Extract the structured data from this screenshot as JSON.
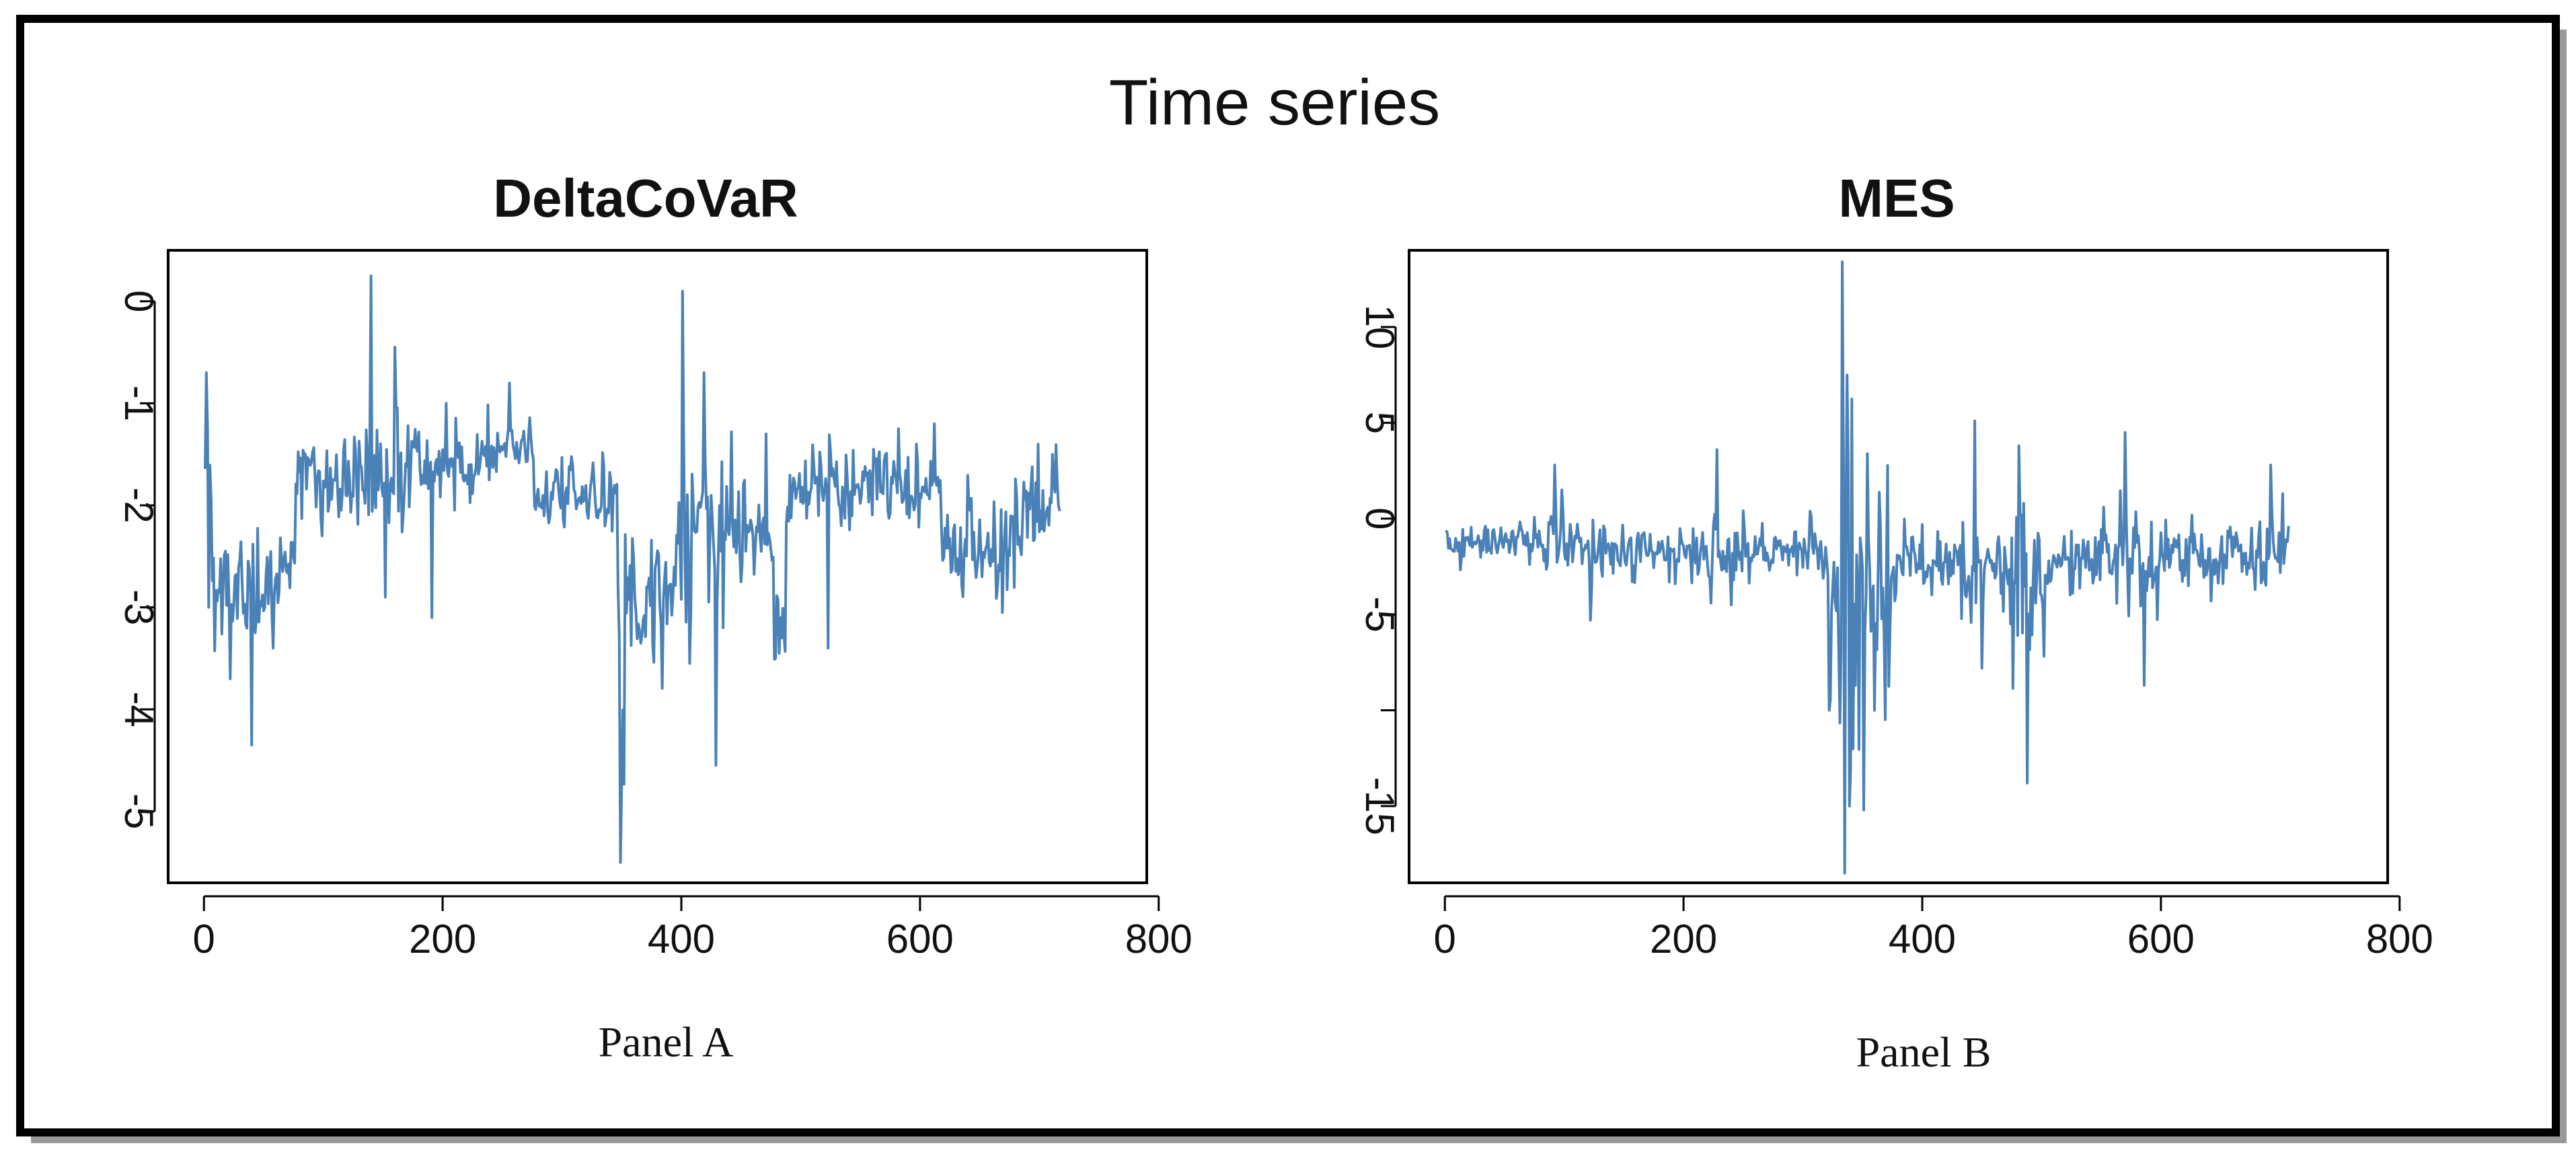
{
  "figure": {
    "title": "Time series"
  },
  "chart_data": [
    {
      "type": "line",
      "title": "DeltaCoVaR",
      "caption": "Panel A",
      "xlabel": "",
      "ylabel": "",
      "xlim": [
        -30,
        790
      ],
      "ylim": [
        -5.7,
        0.5
      ],
      "x_ticks": [
        0,
        200,
        400,
        600,
        800
      ],
      "y_ticks": [
        0,
        -1,
        -2,
        -3,
        -4,
        -5
      ],
      "x_tick_labels": [
        "0",
        "200",
        "400",
        "600",
        "800"
      ],
      "y_tick_labels": [
        "0",
        "-1",
        "-2",
        "-3",
        "-4",
        "-5"
      ],
      "series_color": "#4a82b8",
      "series": [
        {
          "name": "DeltaCoVaR",
          "x_start": 1,
          "x_step": 1,
          "segments": [
            {
              "n": 6,
              "mean": -1.6,
              "noise": 0.22,
              "spikes": [
                [
                  0.2,
                  -0.7
                ],
                [
                  0.6,
                  -3.0
                ]
              ]
            },
            {
              "n": 40,
              "mean": -2.75,
              "noise": 0.35,
              "spikes": [
                [
                  0.4,
                  -3.7
                ],
                [
                  0.85,
                  -4.35
                ]
              ]
            },
            {
              "n": 30,
              "mean": -2.6,
              "noise": 0.3,
              "spikes": [
                [
                  0.4,
                  -3.4
                ]
              ]
            },
            {
              "n": 60,
              "mean": -1.8,
              "noise": 0.25,
              "spikes": []
            },
            {
              "n": 40,
              "mean": -1.7,
              "noise": 0.28,
              "spikes": [
                [
                  0.1,
                  0.25
                ],
                [
                  0.4,
                  -2.9
                ],
                [
                  0.6,
                  -0.45
                ]
              ]
            },
            {
              "n": 60,
              "mean": -1.55,
              "noise": 0.22,
              "spikes": [
                [
                  0.25,
                  -3.1
                ],
                [
                  0.45,
                  -1.0
                ]
              ]
            },
            {
              "n": 40,
              "mean": -1.45,
              "noise": 0.2,
              "spikes": [
                [
                  0.5,
                  -0.8
                ]
              ]
            },
            {
              "n": 70,
              "mean": -1.95,
              "noise": 0.2,
              "spikes": []
            },
            {
              "n": 6,
              "mean": -4.0,
              "noise": 0.4,
              "spikes": [
                [
                  0.5,
                  -5.5
                ]
              ]
            },
            {
              "n": 55,
              "mean": -2.9,
              "noise": 0.45,
              "spikes": [
                [
                  0.9,
                  0.1
                ]
              ]
            },
            {
              "n": 40,
              "mean": -2.3,
              "noise": 0.4,
              "spikes": [
                [
                  0.3,
                  -0.7
                ],
                [
                  0.55,
                  -4.55
                ],
                [
                  0.7,
                  -3.2
                ]
              ]
            },
            {
              "n": 30,
              "mean": -2.3,
              "noise": 0.35,
              "spikes": [
                [
                  0.8,
                  -1.3
                ]
              ]
            },
            {
              "n": 10,
              "mean": -3.1,
              "noise": 0.25,
              "spikes": [
                [
                  0.5,
                  -3.45
                ]
              ]
            },
            {
              "n": 60,
              "mean": -1.9,
              "noise": 0.28,
              "spikes": [
                [
                  0.6,
                  -3.4
                ]
              ]
            },
            {
              "n": 70,
              "mean": -1.8,
              "noise": 0.22,
              "spikes": [
                [
                  0.5,
                  -1.25
                ]
              ]
            },
            {
              "n": 70,
              "mean": -2.3,
              "noise": 0.3,
              "spikes": [
                [
                  0.5,
                  -2.7
                ],
                [
                  0.75,
                  -3.05
                ]
              ]
            },
            {
              "n": 30,
              "mean": -2.0,
              "noise": 0.3,
              "spikes": [
                [
                  0.4,
                  -1.4
                ],
                [
                  0.8,
                  -1.5
                ]
              ]
            }
          ]
        }
      ]
    },
    {
      "type": "line",
      "title": "MES",
      "caption": "Panel B",
      "xlabel": "",
      "ylabel": "",
      "xlim": [
        -30,
        790
      ],
      "ylim": [
        -19,
        14
      ],
      "x_ticks": [
        0,
        200,
        400,
        600,
        800
      ],
      "y_ticks": [
        10,
        5,
        0,
        -5,
        -10,
        -15
      ],
      "x_tick_labels": [
        "0",
        "200",
        "400",
        "600",
        "800"
      ],
      "y_tick_labels": [
        "10",
        "5",
        "0",
        "-5",
        "",
        "-15"
      ],
      "series_color": "#4a82b8",
      "series": [
        {
          "name": "MES",
          "x_start": 1,
          "x_step": 1,
          "segments": [
            {
              "n": 80,
              "mean": -1.2,
              "noise": 0.6,
              "spikes": []
            },
            {
              "n": 30,
              "mean": -1.4,
              "noise": 0.9,
              "spikes": [
                [
                  0.4,
                  2.8
                ],
                [
                  0.6,
                  1.5
                ]
              ]
            },
            {
              "n": 40,
              "mean": -1.6,
              "noise": 1.0,
              "spikes": [
                [
                  0.3,
                  -5.3
                ]
              ]
            },
            {
              "n": 70,
              "mean": -1.8,
              "noise": 0.9,
              "spikes": []
            },
            {
              "n": 40,
              "mean": -1.8,
              "noise": 1.1,
              "spikes": [
                [
                  0.2,
                  3.6
                ],
                [
                  0.5,
                  -4.5
                ]
              ]
            },
            {
              "n": 60,
              "mean": -1.6,
              "noise": 0.8,
              "spikes": []
            },
            {
              "n": 10,
              "mean": -3.0,
              "noise": 3.0,
              "spikes": [
                [
                  0.2,
                  -10.0
                ]
              ]
            },
            {
              "n": 12,
              "mean": -4.0,
              "noise": 7.0,
              "spikes": [
                [
                  0.2,
                  13.4
                ],
                [
                  0.4,
                  -18.5
                ],
                [
                  0.6,
                  7.5
                ],
                [
                  0.8,
                  -15.0
                ]
              ]
            },
            {
              "n": 30,
              "mean": -3.5,
              "noise": 3.5,
              "spikes": [
                [
                  0.3,
                  -15.2
                ],
                [
                  0.6,
                  -10.0
                ]
              ]
            },
            {
              "n": 60,
              "mean": -2.4,
              "noise": 1.2,
              "spikes": []
            },
            {
              "n": 40,
              "mean": -2.4,
              "noise": 1.6,
              "spikes": [
                [
                  0.3,
                  5.1
                ],
                [
                  0.45,
                  -7.8
                ]
              ]
            },
            {
              "n": 30,
              "mean": -3.5,
              "noise": 2.5,
              "spikes": [
                [
                  0.3,
                  3.8
                ],
                [
                  0.55,
                  -13.8
                ]
              ]
            },
            {
              "n": 60,
              "mean": -1.9,
              "noise": 1.0,
              "spikes": []
            },
            {
              "n": 40,
              "mean": -2.0,
              "noise": 1.6,
              "spikes": [
                [
                  0.2,
                  4.5
                ],
                [
                  0.6,
                  -8.7
                ]
              ]
            },
            {
              "n": 80,
              "mean": -1.8,
              "noise": 0.9,
              "spikes": [
                [
                  0.5,
                  -4.3
                ]
              ]
            },
            {
              "n": 25,
              "mean": -1.5,
              "noise": 1.2,
              "spikes": [
                [
                  0.4,
                  2.8
                ],
                [
                  0.8,
                  1.3
                ]
              ]
            }
          ]
        }
      ]
    }
  ]
}
